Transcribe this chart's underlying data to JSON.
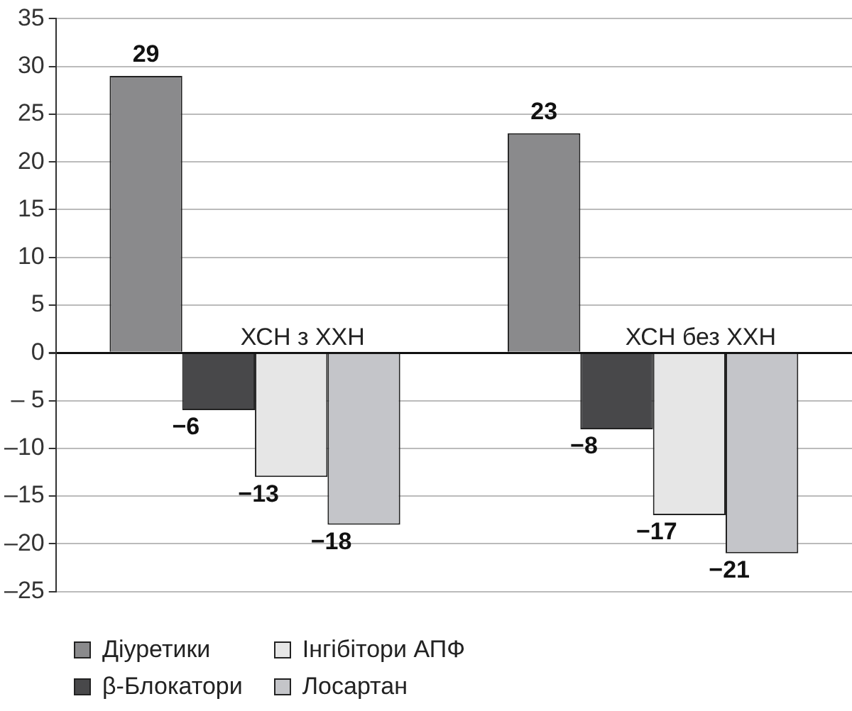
{
  "chart_data": {
    "type": "bar",
    "categories": [
      "ХСН з ХХН",
      "ХСН без ХХН"
    ],
    "series": [
      {
        "name": "Діуретики",
        "color": "#8a8a8c",
        "values": [
          29,
          23
        ],
        "value_labels": [
          "29",
          "23"
        ]
      },
      {
        "name": "β-Блокатори",
        "color": "#48484a",
        "values": [
          -6,
          -8
        ],
        "value_labels": [
          "−6",
          "−8"
        ]
      },
      {
        "name": "Інгібітори АПФ",
        "color": "#e6e6e6",
        "values": [
          -13,
          -17
        ],
        "value_labels": [
          "−13",
          "−17"
        ]
      },
      {
        "name": "Лосартан",
        "color": "#c4c5c9",
        "values": [
          -18,
          -21
        ],
        "value_labels": [
          "−18",
          "−21"
        ]
      }
    ],
    "ylim": [
      -25,
      35
    ],
    "yticks": [
      {
        "value": -25,
        "label": "–25"
      },
      {
        "value": -20,
        "label": "–20"
      },
      {
        "value": -15,
        "label": "–15"
      },
      {
        "value": -10,
        "label": "–10"
      },
      {
        "value": -5,
        "label": "– 5"
      },
      0,
      5,
      10,
      15,
      20,
      25,
      30,
      35
    ],
    "grid": "y",
    "legend": "bottom left",
    "tick_labels": "y"
  }
}
